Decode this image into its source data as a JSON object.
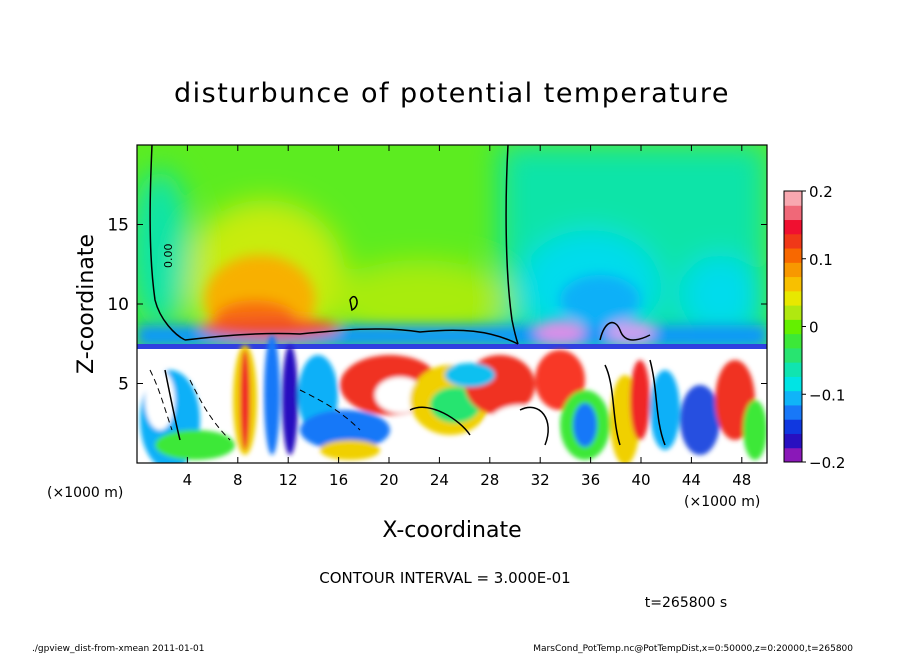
{
  "chart_data": {
    "type": "heatmap",
    "title": "disturbunce of potential temperature",
    "xlabel": "X-coordinate",
    "ylabel": "Z-coordinate",
    "x_unit_left": "(×1000 m)",
    "x_unit_right": "(×1000 m)",
    "xlim": [
      0,
      50
    ],
    "ylim": [
      0,
      20
    ],
    "x_ticks": [
      4,
      8,
      12,
      16,
      20,
      24,
      28,
      32,
      36,
      40,
      44,
      48
    ],
    "y_ticks": [
      5,
      10,
      15
    ],
    "colorbar": {
      "range": [
        -0.2,
        0.2
      ],
      "ticks": [
        {
          "value": 0.2,
          "label": "0.2"
        },
        {
          "value": 0.1,
          "label": "0.1"
        },
        {
          "value": 0,
          "label": "0"
        },
        {
          "value": -0.1,
          "label": "−0.1"
        },
        {
          "value": -0.2,
          "label": "−0.2"
        }
      ],
      "colors": [
        "#8a18b8",
        "#2810c0",
        "#1038e0",
        "#1878f8",
        "#10b4f8",
        "#00e4e4",
        "#10e4b0",
        "#28e470",
        "#3ce838",
        "#64f000",
        "#b0e810",
        "#e8e800",
        "#f8c000",
        "#f89800",
        "#f86800",
        "#f03818",
        "#f01030",
        "#f06878",
        "#f8a8b0"
      ]
    },
    "contour_label": "0.00",
    "contour_interval_text": "CONTOUR INTERVAL = 3.000E-01",
    "time_text": "t=265800 s"
  },
  "footer": {
    "left": "./gpview_dist-from-xmean  2011-01-01",
    "right": "MarsCond_PotTemp.nc@PotTempDist,x=0:50000,z=0:20000,t=265800"
  }
}
